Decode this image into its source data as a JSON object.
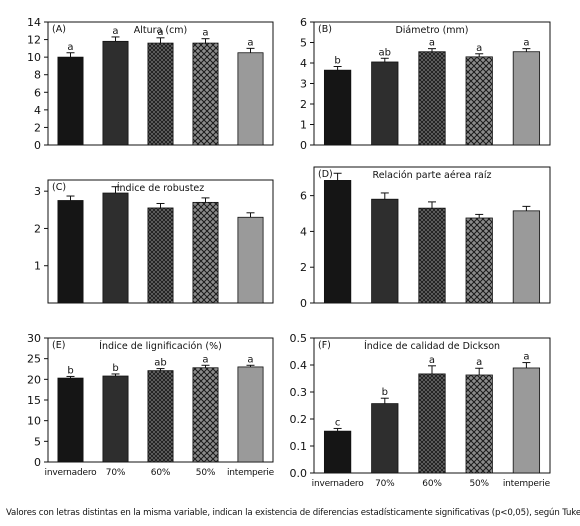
{
  "caption": "Valores con letras distintas en la misma variable, indican la existencia de diferencias estadísticamente significativas (p<0,05), según Tukey.",
  "categories": [
    "invernadero",
    "70%",
    "60%",
    "50%",
    "intemperie"
  ],
  "bar_fill_colors": [
    "#151515",
    "#2e2e2e",
    "#5a5a5a",
    "#6e6e6e",
    "#9a9a9a"
  ],
  "chart_data": [
    {
      "type": "bar",
      "panel": "(A)",
      "title": "Altura (cm)",
      "categories": [
        "invernadero",
        "70%",
        "60%",
        "50%",
        "intemperie"
      ],
      "values": [
        10.0,
        11.8,
        11.6,
        11.6,
        10.5
      ],
      "errors": [
        0.5,
        0.5,
        0.6,
        0.5,
        0.5
      ],
      "letters": [
        "a",
        "a",
        "a",
        "a",
        "a"
      ],
      "ylim": [
        0,
        14
      ],
      "yticks": [
        0,
        2,
        4,
        6,
        8,
        10,
        12,
        14
      ],
      "xlabel": "",
      "ylabel": ""
    },
    {
      "type": "bar",
      "panel": "(B)",
      "title": "Diámetro (mm)",
      "categories": [
        "invernadero",
        "70%",
        "60%",
        "50%",
        "intemperie"
      ],
      "values": [
        3.65,
        4.05,
        4.55,
        4.3,
        4.55
      ],
      "errors": [
        0.18,
        0.18,
        0.15,
        0.15,
        0.15
      ],
      "letters": [
        "b",
        "ab",
        "a",
        "a",
        "a"
      ],
      "ylim": [
        0,
        6
      ],
      "yticks": [
        0,
        1,
        2,
        3,
        4,
        5,
        6
      ],
      "xlabel": "",
      "ylabel": ""
    },
    {
      "type": "bar",
      "panel": "(C)",
      "title": "Índice de robustez",
      "categories": [
        "invernadero",
        "70%",
        "60%",
        "50%",
        "intemperie"
      ],
      "values": [
        2.75,
        2.95,
        2.55,
        2.7,
        2.3
      ],
      "errors": [
        0.12,
        0.17,
        0.12,
        0.12,
        0.12
      ],
      "letters": [
        "",
        "",
        "",
        "",
        ""
      ],
      "ylim": [
        0,
        3.3
      ],
      "yticks": [
        1,
        2,
        3
      ],
      "xlabel": "",
      "ylabel": ""
    },
    {
      "type": "bar",
      "panel": "(D)",
      "title": "Relación parte aérea raíz",
      "categories": [
        "invernadero",
        "70%",
        "60%",
        "50%",
        "intemperie"
      ],
      "values": [
        6.85,
        5.8,
        5.3,
        4.75,
        5.15
      ],
      "errors": [
        0.4,
        0.35,
        0.35,
        0.2,
        0.25
      ],
      "letters": [
        "",
        "",
        "",
        "",
        ""
      ],
      "ylim": [
        0,
        7.6
      ],
      "yticks": [
        0,
        2,
        4,
        6
      ],
      "xlabel": "",
      "ylabel": ""
    },
    {
      "type": "bar",
      "panel": "(E)",
      "title": "Índice de lignificación (%)",
      "categories": [
        "invernadero",
        "70%",
        "60%",
        "50%",
        "intemperie"
      ],
      "values": [
        20.3,
        20.8,
        22.1,
        22.8,
        23.0
      ],
      "errors": [
        0.4,
        0.5,
        0.5,
        0.6,
        0.4
      ],
      "letters": [
        "b",
        "b",
        "ab",
        "a",
        "a"
      ],
      "ylim": [
        0,
        30
      ],
      "yticks": [
        0,
        5,
        10,
        15,
        20,
        25,
        30
      ],
      "xlabel": "",
      "ylabel": ""
    },
    {
      "type": "bar",
      "panel": "(F)",
      "title": "Índice de calidad de Dickson",
      "categories": [
        "invernadero",
        "70%",
        "60%",
        "50%",
        "intemperie"
      ],
      "values": [
        0.155,
        0.257,
        0.367,
        0.363,
        0.389
      ],
      "errors": [
        0.01,
        0.02,
        0.03,
        0.025,
        0.02
      ],
      "letters": [
        "c",
        "b",
        "a",
        "a",
        "a"
      ],
      "ylim": [
        0,
        0.5
      ],
      "yticks": [
        0,
        0.1,
        0.2,
        0.3,
        0.4,
        0.5
      ],
      "xlabel": "",
      "ylabel": ""
    }
  ]
}
